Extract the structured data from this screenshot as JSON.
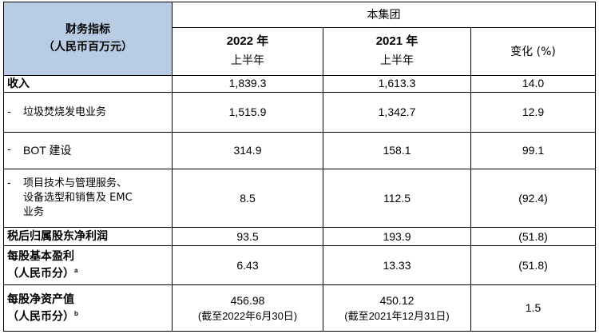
{
  "header": {
    "metric_line1": "财务指标",
    "metric_line2": "（人民币百万元）",
    "group": "本集团",
    "year_2022": "2022 年",
    "year_2021": "2021 年",
    "half": "上半年",
    "change": "变化 (%)"
  },
  "rows": [
    {
      "label": "收入",
      "v2022": "1,839.3",
      "v2021": "1,613.3",
      "change": "14.0"
    },
    {
      "dash": "-",
      "label": "垃圾焚烧发电业务",
      "v2022": "1,515.9",
      "v2021": "1,342.7",
      "change": "12.9"
    },
    {
      "dash": "-",
      "label": "BOT 建设",
      "v2022": "314.9",
      "v2021": "158.1",
      "change": "99.1"
    },
    {
      "dash": "-",
      "label_l1": "项目技术与管理服务、",
      "label_l2": "设备选型和销售及 EMC",
      "label_l3": "业务",
      "v2022": "8.5",
      "v2021": "112.5",
      "change": "(92.4)"
    },
    {
      "label": "税后归属股东净利润",
      "v2022": "93.5",
      "v2021": "193.9",
      "change": "(51.8)"
    },
    {
      "label_l1": "每股基本盈利",
      "label_l2": "（人民币分）",
      "sup": "a",
      "v2022": "6.43",
      "v2021": "13.33",
      "change": "(51.8)"
    },
    {
      "label_l1": "每股净资产值",
      "label_l2": "（人民币分）",
      "sup": "b",
      "v2022": "456.98",
      "v2022_note": "(截至2022年6月30日)",
      "v2021": "450.12",
      "v2021_note": "(截至2021年12月31日)",
      "change": "1.5"
    }
  ]
}
